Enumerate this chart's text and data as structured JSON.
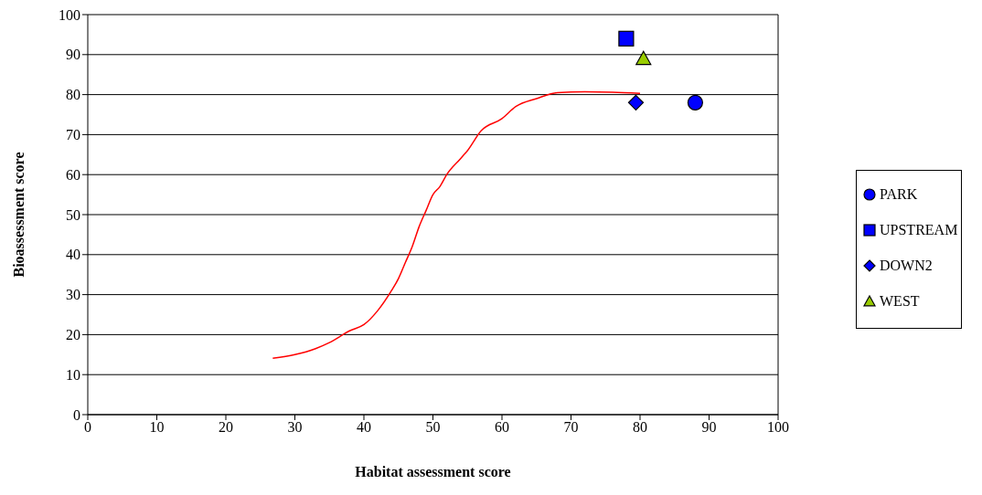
{
  "chart_data": {
    "type": "scatter",
    "xlabel": "Habitat assessment score",
    "ylabel": "Bioassessment score",
    "xlim": [
      0,
      100
    ],
    "xticks": [
      0,
      10,
      20,
      30,
      40,
      50,
      60,
      70,
      80,
      90,
      100
    ],
    "ylim": [
      0,
      100
    ],
    "yticks": [
      0,
      10,
      20,
      30,
      40,
      50,
      60,
      70,
      80,
      90,
      100
    ],
    "grid": "y",
    "legend": "right",
    "series": [
      {
        "name": "PARK",
        "color": "#0000ff",
        "marker": "circle",
        "x": [
          88
        ],
        "values": [
          78
        ]
      },
      {
        "name": "UPSTREAM",
        "color": "#0000ff",
        "marker": "square",
        "x": [
          78
        ],
        "values": [
          94
        ]
      },
      {
        "name": "DOWN2",
        "color": "#0000ff",
        "marker": "diamond",
        "x": [
          79.4
        ],
        "values": [
          78
        ]
      },
      {
        "name": "WEST",
        "color": "#99cc00",
        "marker": "triangle",
        "x": [
          80.5
        ],
        "values": [
          89
        ]
      },
      {
        "type": "line",
        "color": "#ff0000",
        "marker": "none",
        "x": [
          26.8,
          30,
          33,
          35,
          38,
          40,
          42,
          44,
          45,
          46,
          47,
          48,
          49,
          50,
          51,
          52,
          54,
          55,
          57,
          60,
          62,
          65,
          68,
          72,
          76,
          80
        ],
        "values": [
          14.1,
          15,
          16.5,
          18,
          21,
          22.5,
          26,
          31,
          34,
          38,
          42,
          47,
          51,
          55,
          57,
          60,
          64,
          66,
          71,
          74,
          77,
          79,
          80.5,
          80.7,
          80.6,
          80.3
        ]
      }
    ]
  }
}
